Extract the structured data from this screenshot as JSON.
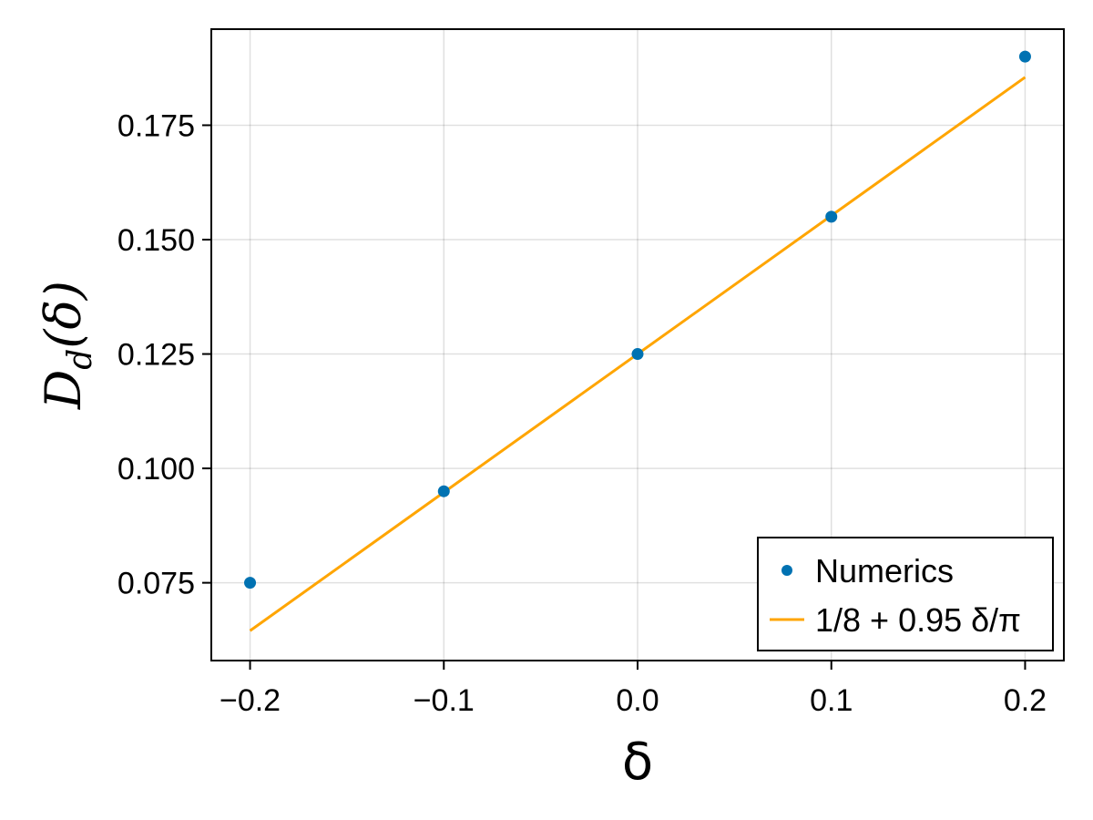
{
  "chart_data": {
    "type": "scatter",
    "title": "",
    "xlabel": "δ",
    "ylabel": {
      "base": "D",
      "sub": "d",
      "arg": "(δ)"
    },
    "xlim": [
      -0.22,
      0.22
    ],
    "ylim": [
      0.058,
      0.196
    ],
    "xticks": [
      -0.2,
      -0.1,
      0.0,
      0.1,
      0.2
    ],
    "xtick_labels": [
      "−0.2",
      "−0.1",
      "0.0",
      "0.1",
      "0.2"
    ],
    "yticks": [
      0.075,
      0.1,
      0.125,
      0.15,
      0.175
    ],
    "ytick_labels": [
      "0.075",
      "0.100",
      "0.125",
      "0.150",
      "0.175"
    ],
    "grid": true,
    "legend_position": "bottom-right",
    "series": [
      {
        "name": "Numerics",
        "kind": "scatter",
        "color": "#0072b2",
        "x": [
          -0.2,
          -0.1,
          0.0,
          0.1,
          0.2
        ],
        "y": [
          0.075,
          0.095,
          0.125,
          0.155,
          0.19
        ]
      },
      {
        "name": "1/8 + 0.95 δ/π",
        "kind": "line",
        "color": "#ffa500",
        "x": [
          -0.2,
          0.2
        ],
        "y": [
          0.06452,
          0.18548
        ]
      }
    ]
  }
}
